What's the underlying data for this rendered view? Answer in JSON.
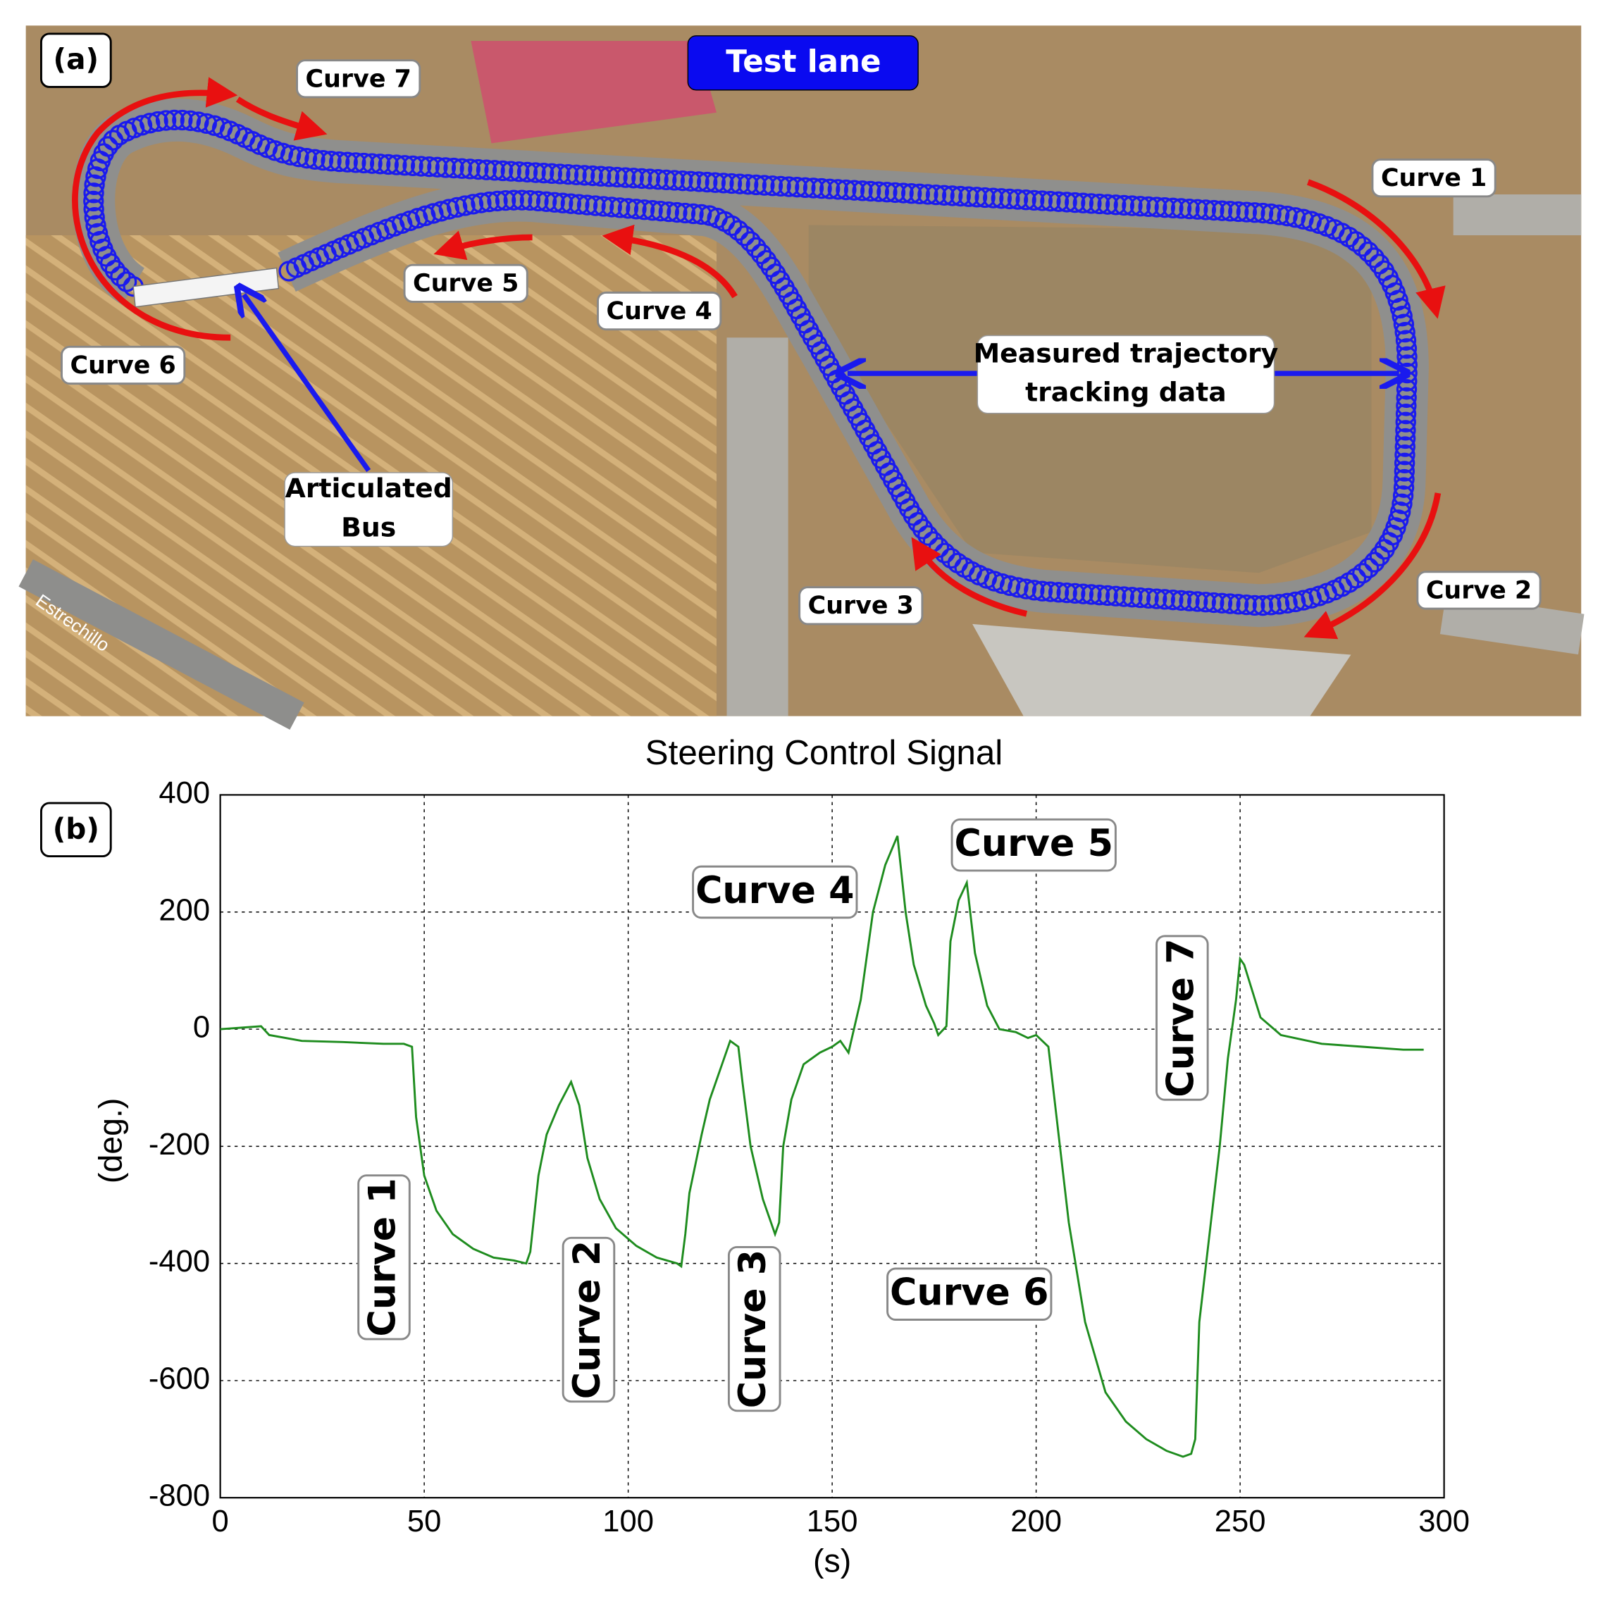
{
  "map_panel": {
    "panel_label": "(a)",
    "title": "Test lane",
    "labels": [
      "Curve 7",
      "Curve 1",
      "Curve 5",
      "Curve 4",
      "Curve 6",
      "Curve 3",
      "Curve 2"
    ],
    "trajectory_label": [
      "Measured trajectory",
      "tracking data"
    ],
    "bus_label": [
      "Articulated",
      "Bus"
    ],
    "road_name": "Estrechillo"
  },
  "chart_data": {
    "type": "line",
    "panel_label": "(b)",
    "title": "Steering Control Signal",
    "x_label": "(s)",
    "y_label": "(deg.)",
    "color": "#1e8c1e",
    "grid": true,
    "xlim": [
      0,
      300
    ],
    "ylim": [
      -800,
      400
    ],
    "xticks": [
      0,
      50,
      100,
      150,
      200,
      250,
      300
    ],
    "yticks": [
      -800,
      -600,
      -400,
      -200,
      0,
      200,
      400
    ],
    "x": [
      0,
      10,
      12,
      20,
      30,
      40,
      45,
      47,
      48,
      50,
      53,
      57,
      62,
      67,
      72,
      75,
      76,
      78,
      80,
      83,
      86,
      88,
      90,
      93,
      97,
      102,
      107,
      112,
      113,
      114,
      115,
      118,
      120,
      123,
      125,
      127,
      128,
      130,
      133,
      136,
      137,
      138,
      140,
      143,
      147,
      150,
      152,
      154,
      155,
      157,
      160,
      163,
      166,
      168,
      170,
      173,
      175,
      176,
      178,
      179,
      181,
      183,
      185,
      188,
      191,
      195,
      198,
      200,
      203,
      205,
      208,
      212,
      217,
      222,
      227,
      232,
      236,
      238,
      239,
      240,
      243,
      245,
      247,
      249,
      250,
      251,
      255,
      260,
      270,
      280,
      290,
      295
    ],
    "values": [
      0,
      5,
      -10,
      -20,
      -22,
      -25,
      -25,
      -30,
      -150,
      -250,
      -310,
      -350,
      -375,
      -390,
      -395,
      -400,
      -380,
      -250,
      -180,
      -130,
      -90,
      -130,
      -220,
      -290,
      -340,
      -370,
      -390,
      -400,
      -405,
      -350,
      -280,
      -180,
      -120,
      -60,
      -20,
      -30,
      -90,
      -200,
      -290,
      -350,
      -330,
      -200,
      -120,
      -60,
      -40,
      -30,
      -20,
      -40,
      -10,
      50,
      200,
      280,
      330,
      200,
      110,
      40,
      10,
      -10,
      5,
      150,
      220,
      250,
      130,
      40,
      0,
      -5,
      -15,
      -10,
      -30,
      -150,
      -330,
      -500,
      -620,
      -670,
      -700,
      -720,
      -730,
      -725,
      -700,
      -500,
      -320,
      -200,
      -50,
      50,
      120,
      110,
      20,
      -10,
      -25,
      -30,
      -35,
      -35
    ],
    "annotations": [
      "Curve 1",
      "Curve 2",
      "Curve 3",
      "Curve 4",
      "Curve 5",
      "Curve 6",
      "Curve 7"
    ]
  }
}
